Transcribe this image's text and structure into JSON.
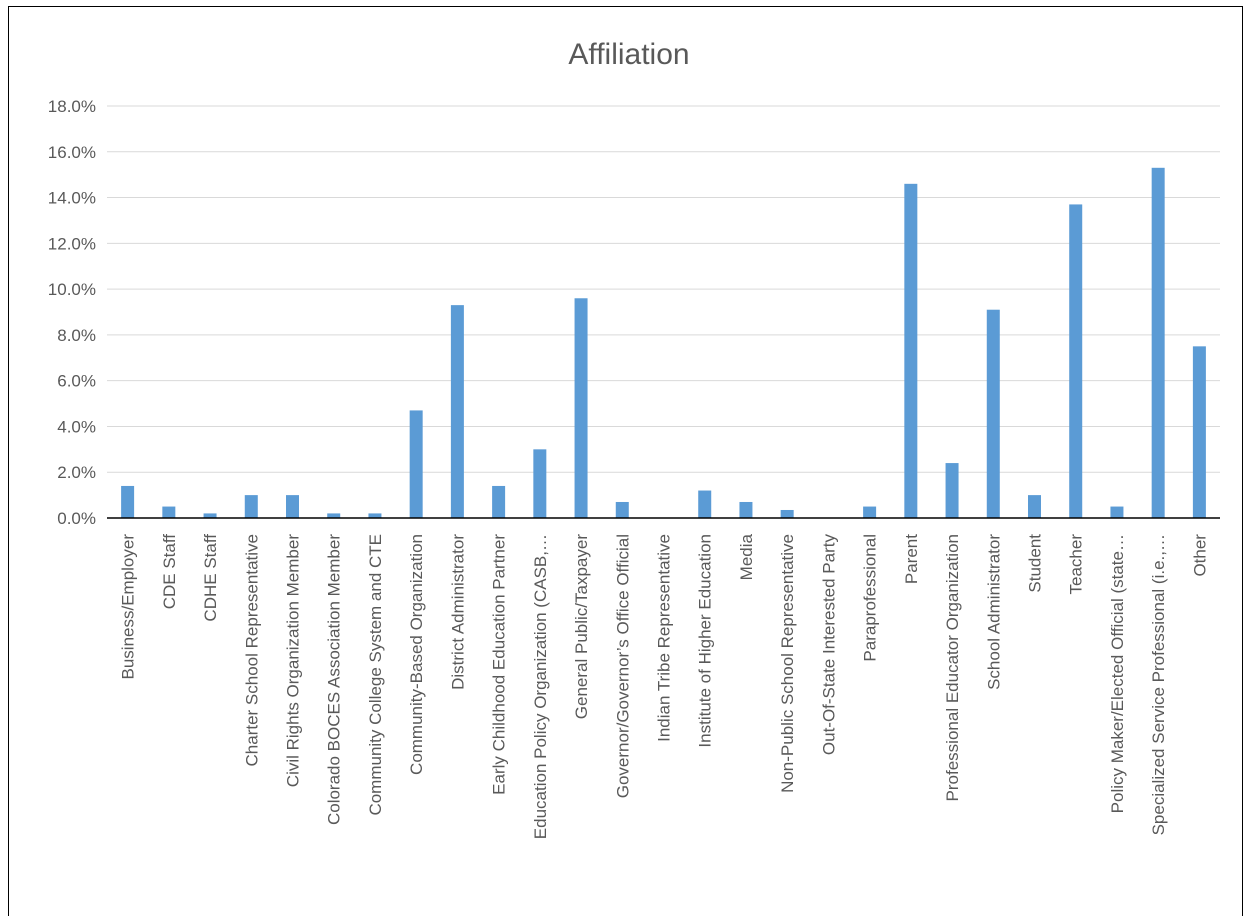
{
  "chart_data": {
    "type": "bar",
    "title": "Affiliation",
    "xlabel": "",
    "ylabel": "",
    "ylim": [
      0,
      18
    ],
    "yticks": [
      "0.0%",
      "2.0%",
      "4.0%",
      "6.0%",
      "8.0%",
      "10.0%",
      "12.0%",
      "14.0%",
      "16.0%",
      "18.0%"
    ],
    "ytick_values": [
      0,
      2,
      4,
      6,
      8,
      10,
      12,
      14,
      16,
      18
    ],
    "grid": true,
    "legend": "none",
    "bar_color": "#5b9bd5",
    "categories": [
      "Business/Employer",
      "CDE Staff",
      "CDHE Staff",
      "Charter School Representative",
      "Civil Rights Organization Member",
      "Colorado BOCES Association Member",
      "Community College System and CTE",
      "Community-Based Organization",
      "District Administrator",
      "Early Childhood Education Partner",
      "Education Policy Organization (CASB,…",
      "General Public/Taxpayer",
      "Governor/Governor’s Office Official",
      "Indian Tribe Representative",
      "Institute of Higher Education",
      "Media",
      "Non-Public School Representative",
      "Out-Of-State Interested Party",
      "Paraprofessional",
      "Parent",
      "Professional Educator Organization",
      "School Administrator",
      "Student",
      "Teacher",
      "Policy Maker/Elected Official (state…",
      "Specialized Service Professional (i.e.,…",
      "Other"
    ],
    "values": [
      1.4,
      0.5,
      0.2,
      1.0,
      1.0,
      0.2,
      0.2,
      4.7,
      9.3,
      1.4,
      3.0,
      9.6,
      0.7,
      0.0,
      1.2,
      0.7,
      0.35,
      0.0,
      0.5,
      14.6,
      2.4,
      9.1,
      1.0,
      13.7,
      0.5,
      15.3,
      7.5
    ]
  }
}
